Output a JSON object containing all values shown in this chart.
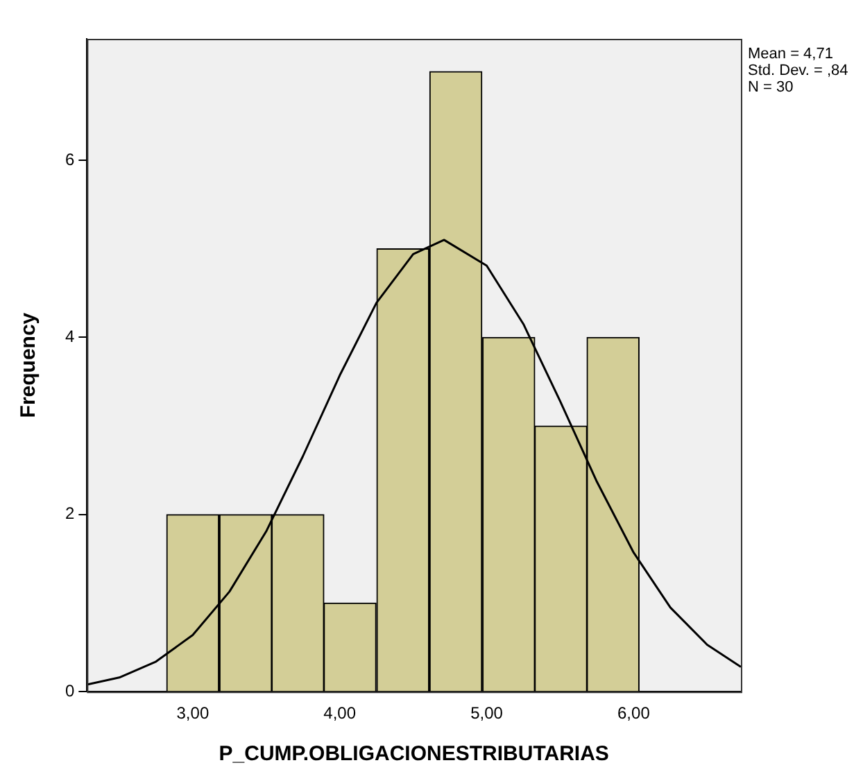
{
  "chart_data": {
    "type": "histogram",
    "xlabel": "P_CUMP.OBLIGACIONESTRIBUTARIAS",
    "ylabel": "Frequency",
    "annotations": [
      "Mean = 4,71",
      "Std. Dev. = ,84",
      "N = 30"
    ],
    "bins": [
      2.82,
      3.18,
      3.54,
      3.89,
      4.25,
      4.61,
      4.97,
      5.33,
      5.68,
      6.04
    ],
    "values": [
      2,
      2,
      2,
      1,
      5,
      7,
      4,
      3,
      4
    ],
    "color": "#d3ce97",
    "series": [
      {
        "type": "line",
        "color": "#000000",
        "x": [
          2.28,
          2.5,
          2.75,
          3.0,
          3.25,
          3.5,
          3.75,
          4.0,
          4.25,
          4.5,
          4.71,
          5.0,
          5.25,
          5.5,
          5.75,
          6.0,
          6.25,
          6.5,
          6.73
        ],
        "values": [
          0.08,
          0.16,
          0.34,
          0.64,
          1.13,
          1.81,
          2.66,
          3.57,
          4.39,
          4.94,
          5.1,
          4.81,
          4.15,
          3.28,
          2.37,
          1.57,
          0.95,
          0.53,
          0.28
        ]
      }
    ],
    "xlim": [
      2.28,
      6.73
    ],
    "xticks": [
      {
        "value": 3,
        "label": "3,00"
      },
      {
        "value": 4,
        "label": "4,00"
      },
      {
        "value": 5,
        "label": "5,00"
      },
      {
        "value": 6,
        "label": "6,00"
      }
    ],
    "ylim": [
      0,
      7.37
    ],
    "yticks": [
      0,
      2,
      4,
      6
    ],
    "grid": false,
    "legend": false,
    "marker": "none",
    "line_style": "solid"
  }
}
